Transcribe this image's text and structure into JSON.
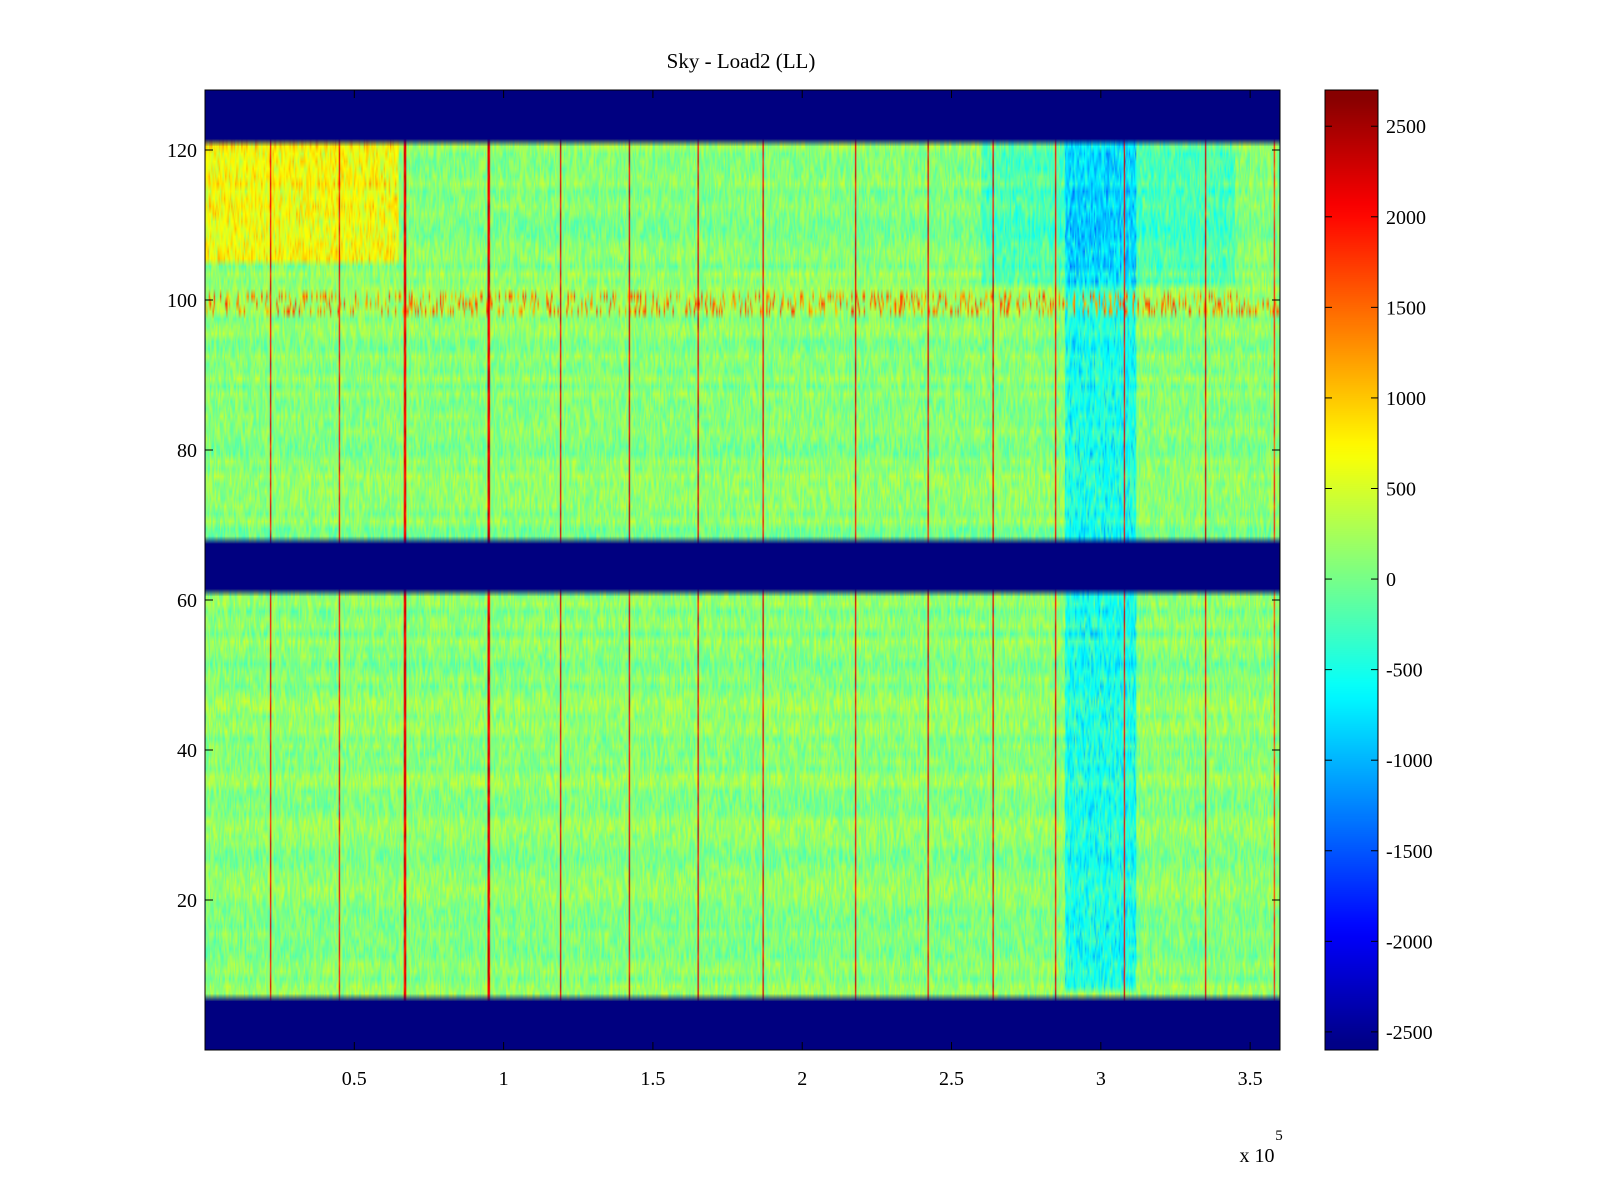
{
  "chart_data": {
    "type": "heatmap",
    "title": "Sky - Load2 (LL)",
    "xlabel": "",
    "ylabel": "",
    "xlim": [
      0,
      360000
    ],
    "ylim": [
      0,
      128
    ],
    "x_multiplier_label": "x 10",
    "x_multiplier_exponent": "5",
    "x_ticks": [
      {
        "value": 50000,
        "label": "0.5"
      },
      {
        "value": 100000,
        "label": "1"
      },
      {
        "value": 150000,
        "label": "1.5"
      },
      {
        "value": 200000,
        "label": "2"
      },
      {
        "value": 250000,
        "label": "2.5"
      },
      {
        "value": 300000,
        "label": "3"
      },
      {
        "value": 350000,
        "label": "3.5"
      }
    ],
    "y_ticks": [
      {
        "value": 20,
        "label": "20"
      },
      {
        "value": 40,
        "label": "40"
      },
      {
        "value": 60,
        "label": "60"
      },
      {
        "value": 80,
        "label": "80"
      },
      {
        "value": 100,
        "label": "100"
      },
      {
        "value": 120,
        "label": "120"
      }
    ],
    "colorbar": {
      "colormap": "jet",
      "range": [
        -2600,
        2700
      ],
      "ticks": [
        {
          "value": 2500,
          "label": "2500"
        },
        {
          "value": 2000,
          "label": "2000"
        },
        {
          "value": 1500,
          "label": "1500"
        },
        {
          "value": 1000,
          "label": "1000"
        },
        {
          "value": 500,
          "label": "500"
        },
        {
          "value": 0,
          "label": "0"
        },
        {
          "value": -500,
          "label": "-500"
        },
        {
          "value": -1000,
          "label": "-1000"
        },
        {
          "value": -1500,
          "label": "-1500"
        },
        {
          "value": -2000,
          "label": "-2000"
        },
        {
          "value": -2500,
          "label": "-2500"
        }
      ]
    },
    "masked_row_bands": [
      {
        "y_range": [
          0,
          7
        ],
        "value": -2600
      },
      {
        "y_range": [
          61,
          68
        ],
        "value": -2600
      },
      {
        "y_range": [
          121,
          128
        ],
        "value": -2600
      }
    ],
    "baseline_value": 100,
    "noise_amplitude": 280,
    "spike_columns": [
      {
        "x": 22000,
        "value": 2400
      },
      {
        "x": 45000,
        "value": 2300
      },
      {
        "x": 67000,
        "value": 2400
      },
      {
        "x": 95000,
        "value": 2500
      },
      {
        "x": 119000,
        "value": 2500
      },
      {
        "x": 142000,
        "value": 2500
      },
      {
        "x": 165000,
        "value": 2500
      },
      {
        "x": 187000,
        "value": 2400
      },
      {
        "x": 218000,
        "value": 2400
      },
      {
        "x": 242000,
        "value": 2400
      },
      {
        "x": 264000,
        "value": 2500
      },
      {
        "x": 285000,
        "value": 2400
      },
      {
        "x": 308000,
        "value": 2300
      },
      {
        "x": 335000,
        "value": 2400
      },
      {
        "x": 358000,
        "value": 2000
      }
    ],
    "rfi_row_band": {
      "y_range": [
        98,
        101
      ],
      "value": 1800
    },
    "regional_offsets": [
      {
        "x_range": [
          0,
          65000
        ],
        "y_range": [
          105,
          121
        ],
        "value": 700
      },
      {
        "x_range": [
          288000,
          312000
        ],
        "y_range": [
          8,
          121
        ],
        "value": -700
      },
      {
        "x_range": [
          260000,
          345000
        ],
        "y_range": [
          102,
          121
        ],
        "value": -350
      }
    ]
  }
}
